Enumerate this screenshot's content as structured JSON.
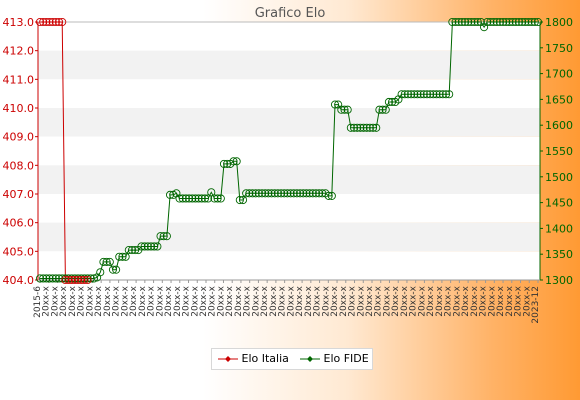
{
  "chart_data": {
    "type": "line",
    "title": "Grafico Elo",
    "y_left": {
      "min": 404,
      "max": 413,
      "ticks": [
        "404.0",
        "405.0",
        "406.0",
        "407.0",
        "408.0",
        "409.0",
        "410.0",
        "411.0",
        "412.0",
        "413.0"
      ]
    },
    "y_right": {
      "min": 1300,
      "max": 1800,
      "ticks": [
        "1300",
        "1350",
        "1400",
        "1450",
        "1500",
        "1550",
        "1600",
        "1650",
        "1700",
        "1750",
        "1800"
      ]
    },
    "grid": true,
    "legend_position": "bottom",
    "x_label_first": "2015-6",
    "x_label_last": "2023-12",
    "x_tick_label_note": "date labels rotated 90°, overlapping and unreadable",
    "series": [
      {
        "name": "Elo Italia",
        "color": "#cc0000",
        "axis": "left",
        "values": [
          413,
          413,
          413,
          413,
          413,
          413,
          413,
          413,
          404,
          404,
          404,
          404,
          404,
          404,
          404,
          404
        ]
      },
      {
        "name": "Elo FIDE",
        "color": "#006600",
        "axis": "right",
        "values": [
          1303,
          1303,
          1303,
          1303,
          1303,
          1303,
          1303,
          1303,
          1303,
          1303,
          1303,
          1303,
          1303,
          1303,
          1303,
          1303,
          1303,
          1303,
          1305,
          1315,
          1335,
          1335,
          1335,
          1320,
          1320,
          1345,
          1345,
          1345,
          1358,
          1358,
          1358,
          1358,
          1365,
          1365,
          1365,
          1365,
          1365,
          1365,
          1385,
          1385,
          1385,
          1465,
          1465,
          1468,
          1458,
          1458,
          1458,
          1458,
          1458,
          1458,
          1458,
          1458,
          1458,
          1458,
          1470,
          1458,
          1458,
          1458,
          1525,
          1525,
          1525,
          1530,
          1530,
          1455,
          1455,
          1468,
          1468,
          1468,
          1468,
          1468,
          1468,
          1468,
          1468,
          1468,
          1468,
          1468,
          1468,
          1468,
          1468,
          1468,
          1468,
          1468,
          1468,
          1468,
          1468,
          1468,
          1468,
          1468,
          1468,
          1468,
          1468,
          1463,
          1463,
          1640,
          1640,
          1630,
          1630,
          1630,
          1595,
          1595,
          1595,
          1595,
          1595,
          1595,
          1595,
          1595,
          1595,
          1630,
          1630,
          1630,
          1645,
          1645,
          1645,
          1650,
          1660,
          1660,
          1660,
          1660,
          1660,
          1660,
          1660,
          1660,
          1660,
          1660,
          1660,
          1660,
          1660,
          1660,
          1660,
          1660,
          1800,
          1800,
          1800,
          1800,
          1800,
          1800,
          1800,
          1800,
          1800,
          1800,
          1790,
          1800,
          1800,
          1800,
          1800,
          1800,
          1800,
          1800,
          1800,
          1800,
          1800,
          1800,
          1800,
          1800,
          1800,
          1800,
          1800,
          1800
        ]
      }
    ]
  }
}
